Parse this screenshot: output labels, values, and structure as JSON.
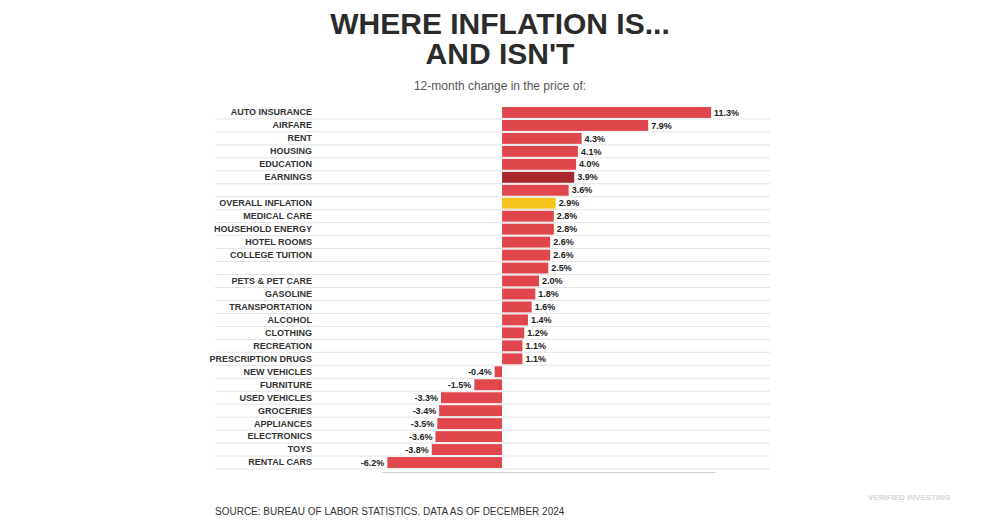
{
  "chart_data": {
    "type": "bar",
    "orientation": "horizontal",
    "title": "WHERE INFLATION IS...\nAND ISN'T",
    "subtitle": "12-month change in the price of:",
    "source": "SOURCE: BUREAU OF LABOR STATISTICS. DATA AS OF DECEMBER 2024",
    "annotations": [
      "VERIFIED INVESTING"
    ],
    "categories": [
      "AUTO INSURANCE",
      "AIRFARE",
      "RENT",
      "HOUSING",
      "EDUCATION",
      "EARNINGS",
      null,
      "OVERALL INFLATION",
      "MEDICAL CARE",
      "HOUSEHOLD ENERGY",
      "HOTEL ROOMS",
      "COLLEGE TUITION",
      null,
      "PETS & PET CARE",
      "GASOLINE",
      "TRANSPORTATION",
      "ALCOHOL",
      "CLOTHING",
      "RECREATION",
      "PRESCRIPTION DRUGS",
      "NEW VEHICLES",
      "FURNITURE",
      "USED VEHICLES",
      "GROCERIES",
      "APPLIANCES",
      "ELECTRONICS",
      "TOYS",
      "RENTAL CARS"
    ],
    "values": [
      11.3,
      7.9,
      4.3,
      4.1,
      4.0,
      3.9,
      3.6,
      2.9,
      2.8,
      2.8,
      2.6,
      2.6,
      2.5,
      2.0,
      1.8,
      1.6,
      1.4,
      1.2,
      1.1,
      1.1,
      -0.4,
      -1.5,
      -3.3,
      -3.4,
      -3.5,
      -3.6,
      -3.8,
      -6.2
    ],
    "value_labels": [
      "11.3%",
      "7.9%",
      "4.3%",
      "4.1%",
      "4.0%",
      "3.9%",
      "3.6%",
      "2.9%",
      "2.8%",
      "2.8%",
      "2.6%",
      "2.6%",
      "2.5%",
      "2.0%",
      "1.8%",
      "1.6%",
      "1.4%",
      "1.2%",
      "1.1%",
      "1.1%",
      "-0.4%",
      "-1.5%",
      "-3.3%",
      "-3.4%",
      "-3.5%",
      "-3.6%",
      "-3.8%",
      "-6.2%"
    ],
    "colors": [
      "#e0474c",
      "#e0474c",
      "#e0474c",
      "#e0474c",
      "#e0474c",
      "#a8282e",
      "#e0474c",
      "#f6c31c",
      "#e0474c",
      "#e0474c",
      "#e0474c",
      "#e0474c",
      "#e0474c",
      "#e0474c",
      "#e0474c",
      "#e0474c",
      "#e0474c",
      "#e0474c",
      "#e0474c",
      "#e0474c",
      "#e0474c",
      "#e0474c",
      "#e0474c",
      "#e0474c",
      "#e0474c",
      "#e0474c",
      "#e0474c",
      "#e0474c"
    ],
    "xlim": [
      -6.5,
      11.5
    ],
    "data_labels": true,
    "tick_labels": "y",
    "grid": true
  }
}
